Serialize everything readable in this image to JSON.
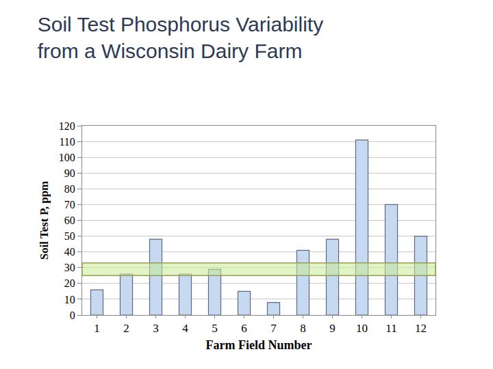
{
  "chart_data": {
    "type": "bar",
    "title": "Soil Test Phosphorus Variability\nfrom a Wisconsin Dairy Farm",
    "x_label": "Farm Field Number",
    "y_label": "Soil Test P, ppm",
    "categories": [
      "1",
      "2",
      "3",
      "4",
      "5",
      "6",
      "7",
      "8",
      "9",
      "10",
      "11",
      "12"
    ],
    "values": [
      16,
      26,
      48,
      26,
      29,
      15,
      8,
      41,
      48,
      111,
      70,
      50
    ],
    "color": "#c6d9f0",
    "ylim": [
      0,
      120
    ],
    "yticks": [
      0,
      10,
      20,
      30,
      40,
      50,
      60,
      70,
      80,
      90,
      100,
      110,
      120
    ],
    "grid": true,
    "optimum_range": [
      25,
      33
    ]
  }
}
